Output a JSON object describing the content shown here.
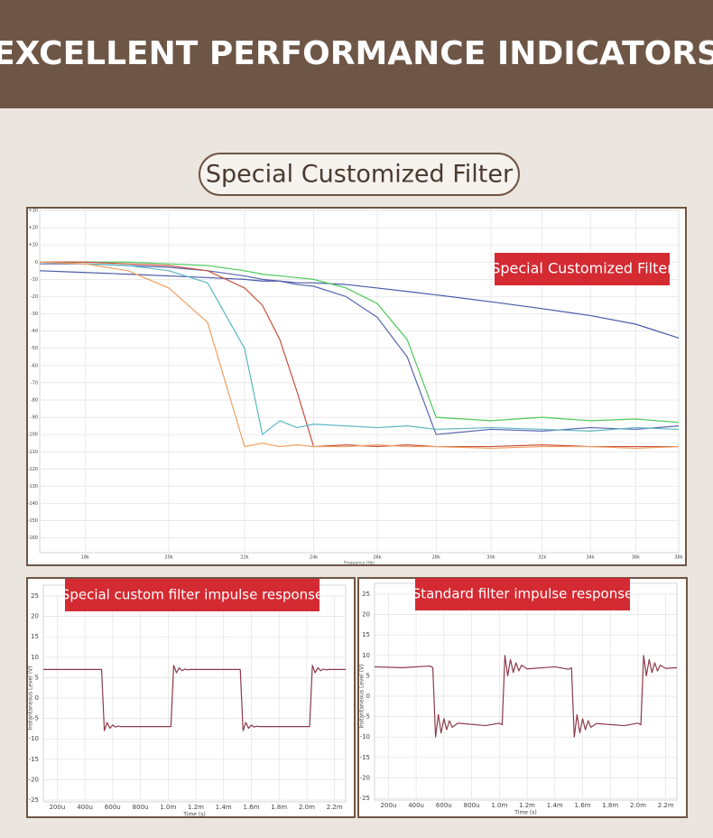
{
  "header": {
    "title": "EXCELLENT PERFORMANCE INDICATORS"
  },
  "section_title": "Special Customized Filter",
  "chart_data": [
    {
      "type": "line",
      "annotation": "Special Customized Filter",
      "xlabel": "Frequency (Hz)",
      "xscale": "log",
      "grid": true,
      "xlim": [
        17000,
        38000
      ],
      "xticks": [
        {
          "value": 18000,
          "label": "18k"
        },
        {
          "value": 20000,
          "label": "20k"
        },
        {
          "value": 22000,
          "label": "22k"
        },
        {
          "value": 24000,
          "label": "24k"
        },
        {
          "value": 26000,
          "label": "26k"
        },
        {
          "value": 28000,
          "label": "28k"
        },
        {
          "value": 30000,
          "label": "30k"
        },
        {
          "value": 32000,
          "label": "32k"
        },
        {
          "value": 34000,
          "label": "34k"
        },
        {
          "value": 36000,
          "label": "36k"
        },
        {
          "value": 38000,
          "label": "38k"
        }
      ],
      "ylim": [
        -168,
        30
      ],
      "yticks": [
        {
          "value": 30,
          "label": "+30"
        },
        {
          "value": 20,
          "label": "+20"
        },
        {
          "value": 10,
          "label": "+10"
        },
        0,
        -10,
        -20,
        -30,
        -40,
        -50,
        -60,
        -70,
        -80,
        -90,
        -100,
        -110,
        -120,
        -130,
        -140,
        -150,
        -160
      ],
      "x": [
        17000,
        18000,
        19000,
        20000,
        21000,
        22000,
        22500,
        23000,
        23500,
        24000,
        25000,
        26000,
        27000,
        28000,
        30000,
        32000,
        34000,
        36000,
        38000
      ],
      "series": [
        {
          "color": "#4a5aa8",
          "values": [
            -5,
            -6,
            -7,
            -8,
            -9,
            -10,
            -11,
            -11,
            -12,
            -12,
            -13,
            -15,
            -17,
            -19,
            -23,
            -27,
            -31,
            -36,
            -44
          ]
        },
        {
          "color": "#5a66b0",
          "values": [
            -1,
            -1,
            -2,
            -3,
            -5,
            -8,
            -10,
            -11,
            -13,
            -14,
            -20,
            -32,
            -55,
            -100,
            -97,
            -98,
            -96,
            -97,
            -95
          ]
        },
        {
          "color": "#4fc85a",
          "values": [
            0,
            0,
            0,
            -1,
            -2,
            -5,
            -7,
            -8,
            -9,
            -10,
            -15,
            -24,
            -45,
            -90,
            -92,
            -90,
            -92,
            -91,
            -93
          ]
        },
        {
          "color": "#c8503c",
          "values": [
            0,
            0,
            -1,
            -2,
            -5,
            -15,
            -25,
            -45,
            -75,
            -107,
            -106,
            -107,
            -106,
            -107,
            -107,
            -106,
            -107,
            -107,
            -107
          ]
        },
        {
          "color": "#5ab8c0",
          "values": [
            0,
            -1,
            -2,
            -5,
            -12,
            -50,
            -100,
            -92,
            -96,
            -94,
            -95,
            -96,
            -95,
            -97,
            -96,
            -97,
            -98,
            -96,
            -97
          ]
        },
        {
          "color": "#f0a060",
          "values": [
            0,
            -1,
            -5,
            -15,
            -35,
            -107,
            -105,
            -107,
            -106,
            -107,
            -107,
            -106,
            -107,
            -107,
            -108,
            -107,
            -107,
            -108,
            -107
          ]
        }
      ]
    },
    {
      "type": "line",
      "annotation": "Special custom filter impulse response",
      "xlabel": "Time (s)",
      "ylabel": "Instantaneous Level (V)",
      "grid": true,
      "xlim": [
        0.0001,
        0.00228
      ],
      "xticks": [
        {
          "value": 0.0002,
          "label": "200u"
        },
        {
          "value": 0.0004,
          "label": "400u"
        },
        {
          "value": 0.0006,
          "label": "600u"
        },
        {
          "value": 0.0008,
          "label": "800u"
        },
        {
          "value": 0.001,
          "label": "1.0m"
        },
        {
          "value": 0.0012,
          "label": "1.2m"
        },
        {
          "value": 0.0014,
          "label": "1.4m"
        },
        {
          "value": 0.0016,
          "label": "1.6m"
        },
        {
          "value": 0.0018,
          "label": "1.8m"
        },
        {
          "value": 0.002,
          "label": "2.0m"
        },
        {
          "value": 0.0022,
          "label": "2.2m"
        }
      ],
      "ylim": [
        -25,
        25
      ],
      "yticks": [
        25,
        20,
        15,
        10,
        5,
        0,
        -5,
        -10,
        -15,
        -20,
        -25
      ],
      "x": [
        0.0001,
        0.0003,
        0.0005,
        0.00052,
        0.00054,
        0.00056,
        0.00058,
        0.0006,
        0.00062,
        0.00064,
        0.00066,
        0.0007,
        0.0009,
        0.001,
        0.00102,
        0.00104,
        0.00106,
        0.00108,
        0.0011,
        0.00112,
        0.00114,
        0.00116,
        0.0012,
        0.0014,
        0.0015,
        0.00152,
        0.00154,
        0.00156,
        0.00158,
        0.0016,
        0.00162,
        0.00164,
        0.00166,
        0.0017,
        0.0019,
        0.002,
        0.00202,
        0.00204,
        0.00206,
        0.00208,
        0.0021,
        0.00212,
        0.00214,
        0.00216,
        0.0022,
        0.00228
      ],
      "series": [
        {
          "color": "#8c3a4a",
          "values": [
            7,
            7,
            7,
            7,
            -8,
            -6,
            -7.4,
            -6.6,
            -7.1,
            -6.9,
            -7,
            -7,
            -7,
            -7,
            -7,
            8,
            6.2,
            7.4,
            6.7,
            7.1,
            6.9,
            7,
            7,
            7,
            7,
            7,
            -8,
            -6,
            -7.4,
            -6.6,
            -7.1,
            -6.9,
            -7,
            -7,
            -7,
            -7,
            -7,
            8,
            6.2,
            7.4,
            6.7,
            7.1,
            6.9,
            7,
            7,
            7
          ]
        }
      ]
    },
    {
      "type": "line",
      "annotation": "Standard filter impulse response",
      "xlabel": "Time (s)",
      "ylabel": "Instantaneous Level (V)",
      "grid": true,
      "xlim": [
        0.0001,
        0.00228
      ],
      "xticks": [
        {
          "value": 0.0002,
          "label": "200u"
        },
        {
          "value": 0.0004,
          "label": "400u"
        },
        {
          "value": 0.0006,
          "label": "600u"
        },
        {
          "value": 0.0008,
          "label": "800u"
        },
        {
          "value": 0.001,
          "label": "1.0m"
        },
        {
          "value": 0.0012,
          "label": "1.2m"
        },
        {
          "value": 0.0014,
          "label": "1.4m"
        },
        {
          "value": 0.0016,
          "label": "1.6m"
        },
        {
          "value": 0.0018,
          "label": "1.8m"
        },
        {
          "value": 0.002,
          "label": "2.0m"
        },
        {
          "value": 0.0022,
          "label": "2.2m"
        }
      ],
      "ylim": [
        -25,
        25
      ],
      "yticks": [
        25,
        20,
        15,
        10,
        5,
        0,
        -5,
        -10,
        -15,
        -20,
        -25
      ],
      "x": [
        0.0001,
        0.0003,
        0.0005,
        0.00052,
        0.00054,
        0.00056,
        0.00058,
        0.0006,
        0.00062,
        0.00064,
        0.00066,
        0.0007,
        0.0009,
        0.001,
        0.00102,
        0.00104,
        0.00106,
        0.00108,
        0.0011,
        0.00112,
        0.00114,
        0.00116,
        0.0012,
        0.0014,
        0.0015,
        0.00152,
        0.00154,
        0.00156,
        0.00158,
        0.0016,
        0.00162,
        0.00164,
        0.00166,
        0.0017,
        0.0019,
        0.002,
        0.00202,
        0.00204,
        0.00206,
        0.00208,
        0.0021,
        0.00212,
        0.00214,
        0.00216,
        0.0022,
        0.00228
      ],
      "series": [
        {
          "color": "#8c3a4a",
          "values": [
            7.2,
            7,
            7.4,
            7,
            -10,
            -4.5,
            -9,
            -5.5,
            -8.2,
            -6,
            -7.6,
            -6.6,
            -7.2,
            -6.6,
            -7,
            10,
            5,
            9,
            5.8,
            8.2,
            6.2,
            7.6,
            6.7,
            7.2,
            6.6,
            7,
            -10,
            -4.5,
            -9,
            -5.5,
            -8.2,
            -6,
            -7.6,
            -6.7,
            -7.2,
            -6.6,
            -7,
            10,
            5,
            9,
            5.8,
            8.2,
            6.2,
            7.6,
            6.8,
            7
          ]
        }
      ]
    }
  ]
}
